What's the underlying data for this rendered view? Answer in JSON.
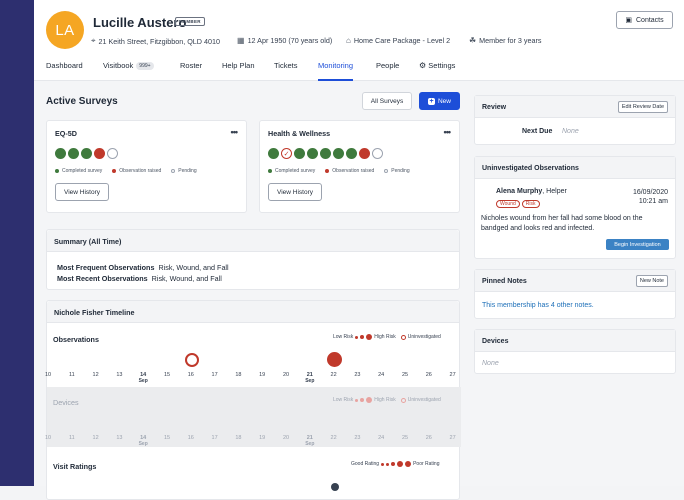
{
  "profile": {
    "initials": "LA",
    "name": "Lucille Austero",
    "badge": "MEMBER",
    "address": "21 Keith Street, Fitzgibbon, QLD 4010",
    "dob": "12 Apr 1950 (70 years old)",
    "package": "Home Care Package - Level 2",
    "membership": "Member for 3 years",
    "contacts_label": "Contacts",
    "avatar_color": "#f5a623"
  },
  "tabs": [
    {
      "label": "Dashboard"
    },
    {
      "label": "Visitbook",
      "pill": "999+"
    },
    {
      "label": "Roster"
    },
    {
      "label": "Help Plan"
    },
    {
      "label": "Tickets"
    },
    {
      "label": "Monitoring",
      "active": true
    },
    {
      "label": "People"
    },
    {
      "label": "Settings",
      "icon": "gear-icon"
    }
  ],
  "active_surveys": {
    "title": "Active Surveys",
    "all_surveys_label": "All Surveys",
    "new_label": "New",
    "legend": {
      "completed": "Completed survey",
      "observation": "Observation raised",
      "pending": "Pending"
    },
    "view_history_label": "View History",
    "cards": [
      {
        "title": "EQ-5D",
        "statuses": [
          "completed",
          "completed",
          "completed",
          "observation",
          "pending"
        ]
      },
      {
        "title": "Health & Wellness",
        "statuses": [
          "completed",
          "observation-check",
          "completed",
          "completed",
          "completed",
          "completed",
          "completed",
          "observation",
          "pending"
        ]
      }
    ]
  },
  "summary": {
    "title": "Summary (All Time)",
    "rows": [
      {
        "label": "Most Frequent Observations",
        "value": "Risk, Wound, and Fall"
      },
      {
        "label": "Most Recent Observations",
        "value": "Risk, Wound, and Fall"
      }
    ]
  },
  "timeline": {
    "title": "Nichole Fisher Timeline",
    "observations_label": "Observations",
    "devices_label": "Devices",
    "visit_ratings_label": "Visit Ratings",
    "low_risk": "Low Risk",
    "high_risk": "High Risk",
    "uninvestigated": "Uninvestigated",
    "good_rating": "Good Rating",
    "poor_rating": "Poor Rating",
    "days": [
      {
        "d": "10"
      },
      {
        "d": "11"
      },
      {
        "d": "12"
      },
      {
        "d": "13"
      },
      {
        "d": "14",
        "m": "Sep"
      },
      {
        "d": "15"
      },
      {
        "d": "16"
      },
      {
        "d": "17"
      },
      {
        "d": "18"
      },
      {
        "d": "19"
      },
      {
        "d": "20"
      },
      {
        "d": "21",
        "m": "Sep"
      },
      {
        "d": "22"
      },
      {
        "d": "23"
      },
      {
        "d": "24"
      },
      {
        "d": "25"
      },
      {
        "d": "26"
      },
      {
        "d": "27"
      }
    ]
  },
  "review": {
    "title": "Review",
    "edit_label": "Edit Review Date",
    "next_due_label": "Next Due",
    "next_due_value": "None"
  },
  "uninvestigated": {
    "title": "Uninvestigated Observations",
    "author": "Alena Murphy",
    "role": ", Helper",
    "date": "16/09/2020",
    "time": "10:21 am",
    "tags": [
      "Wound",
      "Risk"
    ],
    "text": "Nicholes wound from her fall had some blood on the bandged and looks red and infected.",
    "action_label": "Begin Investigation"
  },
  "pinned": {
    "title": "Pinned Notes",
    "new_label": "New Note",
    "text": "This membership has 4 other notes."
  },
  "devices": {
    "title": "Devices",
    "value": "None"
  },
  "colors": {
    "accent": "#1d4ed8",
    "completed": "#3f7a3d",
    "observation": "#c0392b",
    "sidebar": "#2d2f6f"
  }
}
